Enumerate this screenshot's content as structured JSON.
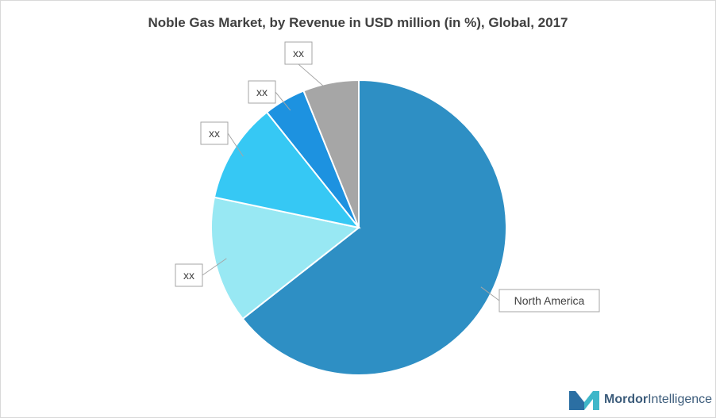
{
  "chart_data": {
    "type": "pie",
    "title": "Noble Gas Market, by Revenue in USD million (in %), Global, 2017",
    "slices": [
      {
        "label": "North America",
        "value": 64.4,
        "color": "#2e8fc4"
      },
      {
        "label": "xx",
        "value": 13.9,
        "color": "#98e8f3"
      },
      {
        "label": "xx",
        "value": 11.0,
        "color": "#36c8f4"
      },
      {
        "label": "xx",
        "value": 4.6,
        "color": "#1d92e0"
      },
      {
        "label": "xx",
        "value": 6.1,
        "color": "#a6a6a6"
      }
    ],
    "start_angle_deg": 0,
    "direction": "clockwise"
  },
  "brand": {
    "logo_word1": "Mordor",
    "logo_word2": "Intelligence"
  }
}
